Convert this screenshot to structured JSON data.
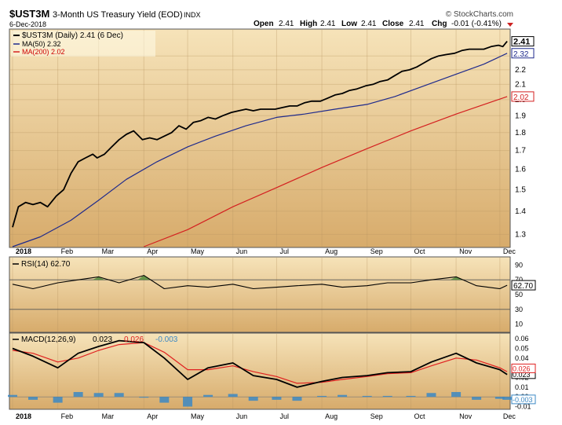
{
  "header": {
    "symbol": "$UST3M",
    "name": "3-Month US Treasury Yield (EOD)",
    "exchange": "INDX",
    "date": "6-Dec-2018",
    "brand": "© StockCharts.com",
    "open_label": "Open",
    "open": "2.41",
    "high_label": "High",
    "high": "2.41",
    "low_label": "Low",
    "low": "2.41",
    "close_label": "Close",
    "close": "2.41",
    "chg_label": "Chg",
    "chg": "-0.01 (-0.41%)"
  },
  "colors": {
    "panel_bg_top": "#f6e3b9",
    "panel_bg_bottom": "#d7ab6b",
    "price": "#000000",
    "ma50": "#1f2a8c",
    "ma200": "#d42020",
    "macd_signal": "#e02020",
    "histogram": "#3b88c4",
    "rsi_fill": "#4f8a3a"
  },
  "chart_data": [
    {
      "type": "line",
      "title": "$UST3M 3-Month US Treasury Yield (EOD) INDX",
      "legend": [
        {
          "label": "$UST3M (Daily) 2.41 (6 Dec)",
          "color": "#000000"
        },
        {
          "label": "MA(50) 2.32",
          "color": "#1f2a8c"
        },
        {
          "label": "MA(200) 2.02",
          "color": "#d42020"
        }
      ],
      "legend_position": "top-left",
      "grid": true,
      "x_labels": [
        "2018",
        "Feb",
        "Mar",
        "Apr",
        "May",
        "Jun",
        "Jul",
        "Aug",
        "Sep",
        "Oct",
        "Nov",
        "Dec"
      ],
      "y_scale": "log",
      "ylim": [
        1.25,
        2.5
      ],
      "y_ticks": [
        "1.3",
        "1.4",
        "1.5",
        "1.6",
        "1.7",
        "1.8",
        "1.9",
        "2.0",
        "2.1",
        "2.2",
        "2.3"
      ],
      "value_tags": [
        "2.41",
        "2.32",
        "2.02"
      ],
      "series": [
        {
          "name": "$UST3M (Daily)",
          "color": "#000000",
          "x": [
            "2018-01-01",
            "2018-01-05",
            "2018-01-10",
            "2018-01-15",
            "2018-01-20",
            "2018-01-25",
            "2018-01-31",
            "2018-02-05",
            "2018-02-10",
            "2018-02-15",
            "2018-02-20",
            "2018-02-25",
            "2018-02-28",
            "2018-03-05",
            "2018-03-10",
            "2018-03-15",
            "2018-03-20",
            "2018-03-25",
            "2018-03-31",
            "2018-04-05",
            "2018-04-10",
            "2018-04-15",
            "2018-04-20",
            "2018-04-25",
            "2018-04-30",
            "2018-05-05",
            "2018-05-10",
            "2018-05-15",
            "2018-05-20",
            "2018-05-25",
            "2018-05-31",
            "2018-06-05",
            "2018-06-10",
            "2018-06-15",
            "2018-06-20",
            "2018-06-25",
            "2018-06-30",
            "2018-07-05",
            "2018-07-10",
            "2018-07-15",
            "2018-07-20",
            "2018-07-25",
            "2018-07-31",
            "2018-08-05",
            "2018-08-10",
            "2018-08-15",
            "2018-08-20",
            "2018-08-25",
            "2018-08-31",
            "2018-09-05",
            "2018-09-10",
            "2018-09-15",
            "2018-09-20",
            "2018-09-25",
            "2018-09-30",
            "2018-10-05",
            "2018-10-10",
            "2018-10-15",
            "2018-10-20",
            "2018-10-25",
            "2018-10-31",
            "2018-11-05",
            "2018-11-10",
            "2018-11-15",
            "2018-11-20",
            "2018-11-25",
            "2018-11-30",
            "2018-12-03",
            "2018-12-06"
          ],
          "values": [
            1.33,
            1.42,
            1.44,
            1.43,
            1.44,
            1.42,
            1.47,
            1.5,
            1.58,
            1.64,
            1.66,
            1.68,
            1.66,
            1.68,
            1.72,
            1.76,
            1.79,
            1.81,
            1.76,
            1.77,
            1.76,
            1.78,
            1.8,
            1.84,
            1.82,
            1.86,
            1.87,
            1.89,
            1.88,
            1.9,
            1.92,
            1.93,
            1.94,
            1.93,
            1.94,
            1.94,
            1.94,
            1.95,
            1.96,
            1.96,
            1.98,
            1.99,
            1.99,
            2.01,
            2.03,
            2.04,
            2.06,
            2.07,
            2.09,
            2.1,
            2.12,
            2.13,
            2.16,
            2.19,
            2.2,
            2.22,
            2.25,
            2.28,
            2.3,
            2.31,
            2.32,
            2.34,
            2.35,
            2.35,
            2.35,
            2.37,
            2.38,
            2.37,
            2.41
          ]
        },
        {
          "name": "MA(50)",
          "color": "#1f2a8c",
          "x": [
            "2018-01-01",
            "2018-01-20",
            "2018-02-10",
            "2018-03-01",
            "2018-03-20",
            "2018-04-10",
            "2018-05-01",
            "2018-05-20",
            "2018-06-10",
            "2018-07-01",
            "2018-07-20",
            "2018-08-10",
            "2018-09-01",
            "2018-09-20",
            "2018-10-10",
            "2018-11-01",
            "2018-11-20",
            "2018-12-06"
          ],
          "values": [
            1.25,
            1.29,
            1.36,
            1.45,
            1.55,
            1.64,
            1.72,
            1.78,
            1.84,
            1.89,
            1.91,
            1.94,
            1.97,
            2.02,
            2.09,
            2.17,
            2.24,
            2.32
          ]
        },
        {
          "name": "MA(200)",
          "color": "#d42020",
          "x": [
            "2018-04-01",
            "2018-05-01",
            "2018-06-01",
            "2018-07-01",
            "2018-08-01",
            "2018-09-01",
            "2018-10-01",
            "2018-11-01",
            "2018-12-06"
          ],
          "values": [
            1.25,
            1.32,
            1.42,
            1.51,
            1.61,
            1.71,
            1.81,
            1.91,
            2.02
          ]
        }
      ]
    },
    {
      "type": "line",
      "legend": [
        {
          "label": "RSI(14) 62.70",
          "color": "#000000"
        }
      ],
      "ylim": [
        0,
        100
      ],
      "y_ticks": [
        "90",
        "70",
        "50",
        "30",
        "10"
      ],
      "value_tag": "62.70",
      "reference_lines": [
        70,
        30
      ],
      "series": [
        {
          "name": "RSI(14)",
          "color": "#000000",
          "x": [
            "2018-01-01",
            "2018-01-15",
            "2018-02-01",
            "2018-02-15",
            "2018-03-01",
            "2018-03-15",
            "2018-04-01",
            "2018-04-15",
            "2018-05-01",
            "2018-05-15",
            "2018-06-01",
            "2018-06-15",
            "2018-07-01",
            "2018-07-15",
            "2018-08-01",
            "2018-08-15",
            "2018-09-01",
            "2018-09-15",
            "2018-10-01",
            "2018-10-15",
            "2018-11-01",
            "2018-11-15",
            "2018-12-01",
            "2018-12-06"
          ],
          "values": [
            64,
            58,
            66,
            70,
            74,
            66,
            76,
            58,
            62,
            60,
            64,
            58,
            60,
            62,
            64,
            60,
            62,
            66,
            66,
            70,
            74,
            62,
            58,
            62.7
          ]
        }
      ]
    },
    {
      "type": "line",
      "legend": [
        {
          "label": "MACD(12,26,9)",
          "color": "#000000"
        },
        {
          "label": "0.023",
          "color": "#000000"
        },
        {
          "label": "0.026",
          "color": "#e02020"
        },
        {
          "label": "-0.003",
          "color": "#3b88c4"
        }
      ],
      "ylim": [
        -0.012,
        0.065
      ],
      "y_ticks": [
        "0.06",
        "0.05",
        "0.04",
        "0.03",
        "0.02",
        "0.01",
        "0.00",
        "-0.01"
      ],
      "value_tags": [
        "0.023",
        "0.026",
        "-0.003"
      ],
      "series": [
        {
          "name": "MACD",
          "color": "#000000",
          "x": [
            "2018-01-01",
            "2018-01-15",
            "2018-02-01",
            "2018-02-15",
            "2018-03-01",
            "2018-03-15",
            "2018-04-01",
            "2018-04-15",
            "2018-05-01",
            "2018-05-15",
            "2018-06-01",
            "2018-06-15",
            "2018-07-01",
            "2018-07-15",
            "2018-08-01",
            "2018-08-15",
            "2018-09-01",
            "2018-09-15",
            "2018-10-01",
            "2018-10-15",
            "2018-11-01",
            "2018-11-15",
            "2018-12-01",
            "2018-12-06"
          ],
          "values": [
            0.05,
            0.042,
            0.03,
            0.045,
            0.052,
            0.058,
            0.056,
            0.04,
            0.018,
            0.03,
            0.035,
            0.022,
            0.018,
            0.01,
            0.016,
            0.02,
            0.022,
            0.025,
            0.026,
            0.036,
            0.045,
            0.035,
            0.028,
            0.023
          ]
        },
        {
          "name": "Signal",
          "color": "#e02020",
          "x": [
            "2018-01-01",
            "2018-01-15",
            "2018-02-01",
            "2018-02-15",
            "2018-03-01",
            "2018-03-15",
            "2018-04-01",
            "2018-04-15",
            "2018-05-01",
            "2018-05-15",
            "2018-06-01",
            "2018-06-15",
            "2018-07-01",
            "2018-07-15",
            "2018-08-01",
            "2018-08-15",
            "2018-09-01",
            "2018-09-15",
            "2018-10-01",
            "2018-10-15",
            "2018-11-01",
            "2018-11-15",
            "2018-12-01",
            "2018-12-06"
          ],
          "values": [
            0.048,
            0.045,
            0.036,
            0.04,
            0.048,
            0.054,
            0.056,
            0.046,
            0.028,
            0.028,
            0.032,
            0.026,
            0.021,
            0.014,
            0.015,
            0.018,
            0.021,
            0.024,
            0.025,
            0.032,
            0.04,
            0.038,
            0.03,
            0.026
          ]
        },
        {
          "name": "Histogram",
          "color": "#3b88c4",
          "x": [
            "2018-01-01",
            "2018-01-15",
            "2018-02-01",
            "2018-02-15",
            "2018-03-01",
            "2018-03-15",
            "2018-04-01",
            "2018-04-15",
            "2018-05-01",
            "2018-05-15",
            "2018-06-01",
            "2018-06-15",
            "2018-07-01",
            "2018-07-15",
            "2018-08-01",
            "2018-08-15",
            "2018-09-01",
            "2018-09-15",
            "2018-10-01",
            "2018-10-15",
            "2018-11-01",
            "2018-11-15",
            "2018-12-01",
            "2018-12-06"
          ],
          "values": [
            0.002,
            -0.003,
            -0.006,
            0.005,
            0.004,
            0.004,
            0.0,
            -0.006,
            -0.01,
            0.002,
            0.003,
            -0.004,
            -0.003,
            -0.004,
            0.001,
            0.002,
            0.001,
            0.001,
            0.001,
            0.004,
            0.005,
            -0.003,
            -0.002,
            -0.003
          ]
        }
      ]
    }
  ]
}
